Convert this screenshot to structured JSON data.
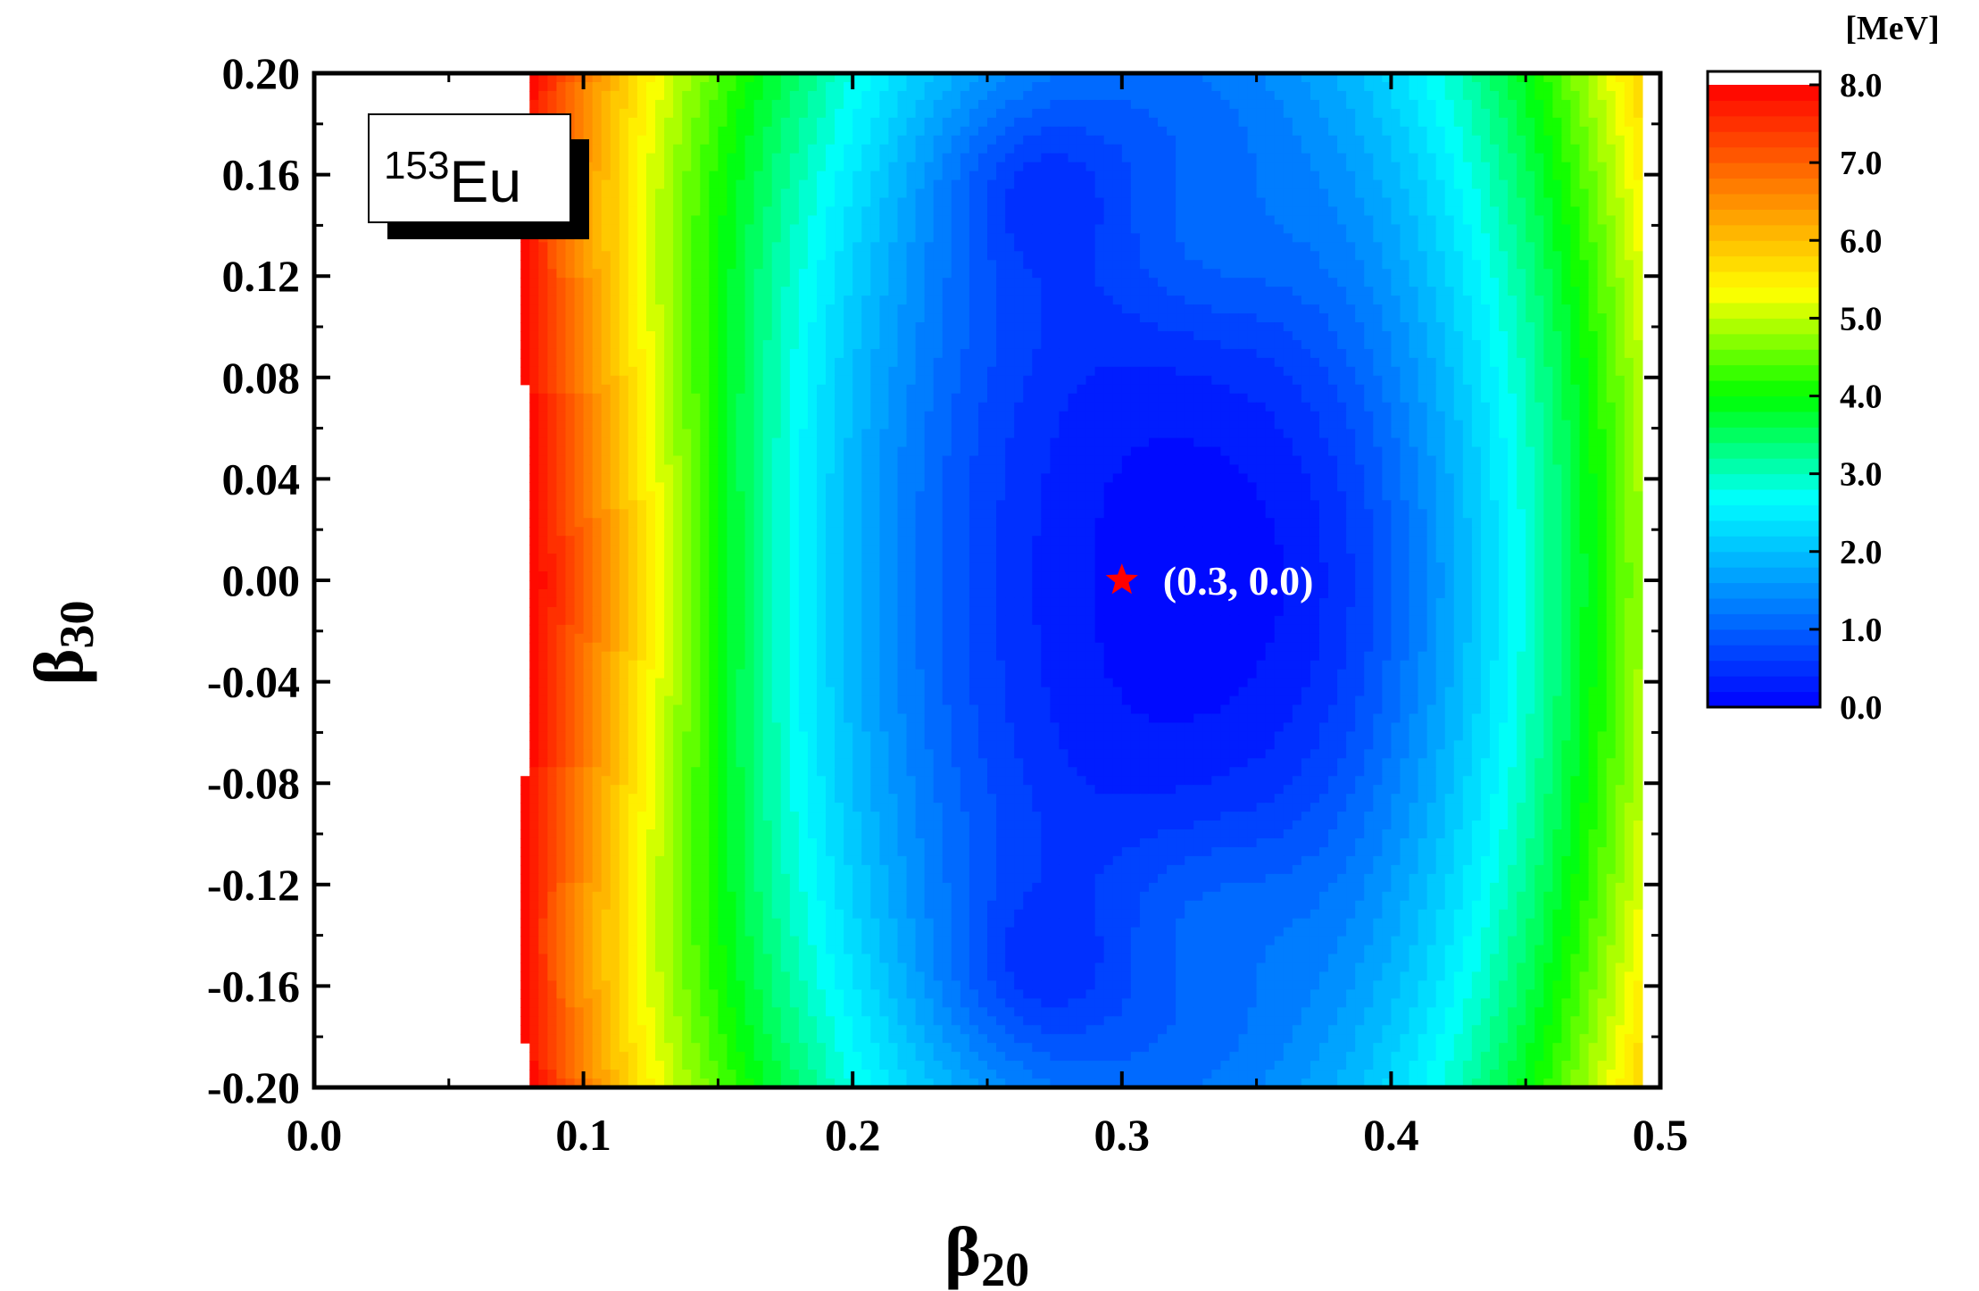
{
  "chart_data": {
    "type": "heatmap",
    "title": "",
    "xlabel": {
      "base": "β",
      "sub": "20"
    },
    "ylabel": {
      "base": "β",
      "sub": "30"
    },
    "xlim": [
      0.0,
      0.5
    ],
    "ylim": [
      -0.2,
      0.2
    ],
    "x_ticks": [
      "0.0",
      "0.1",
      "0.2",
      "0.3",
      "0.4",
      "0.5"
    ],
    "x_tick_values": [
      0.0,
      0.1,
      0.2,
      0.3,
      0.4,
      0.5
    ],
    "y_ticks": [
      "0.20",
      "0.16",
      "0.12",
      "0.08",
      "0.04",
      "0.00",
      "-0.04",
      "-0.08",
      "-0.12",
      "-0.16",
      "-0.20"
    ],
    "y_tick_values": [
      0.2,
      0.16,
      0.12,
      0.08,
      0.04,
      0.0,
      -0.04,
      -0.08,
      -0.12,
      -0.16,
      -0.2
    ],
    "colorbar": {
      "unit": "[MeV]",
      "range": [
        0.0,
        8.0
      ],
      "ticks": [
        "8.0",
        "7.0",
        "6.0",
        "5.0",
        "4.0",
        "3.0",
        "2.0",
        "1.0",
        "0.0"
      ],
      "tick_values": [
        8.0,
        7.0,
        6.0,
        5.0,
        4.0,
        3.0,
        2.0,
        1.0,
        0.0
      ],
      "colormap": [
        "#0000ff",
        "#0080ff",
        "#00ffff",
        "#00ff00",
        "#ffff00",
        "#ff8000",
        "#ff0000"
      ],
      "above_max_color": "#ffffff"
    },
    "nuclide": {
      "mass_number": "153",
      "symbol": "Eu"
    },
    "minimum": {
      "x": 0.3,
      "y": 0.0,
      "label": "(0.3, 0.0)",
      "marker": "star",
      "marker_color": "#ff0000"
    },
    "energy_model": {
      "description_of_surface_shape": "minimum near (0.30, 0.00); rises steeply for small beta20; side pockets near beta30 = ±0.15",
      "levels_step_MeV": 0.2
    }
  }
}
